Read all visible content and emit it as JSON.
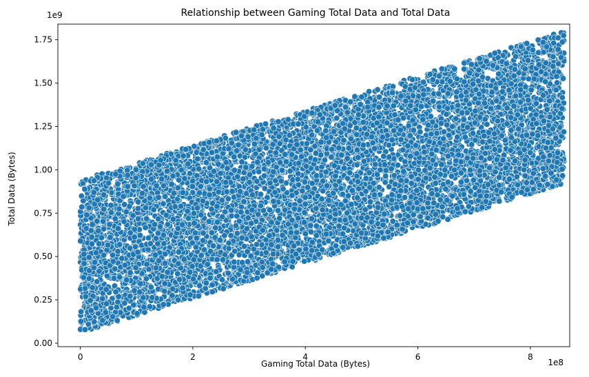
{
  "chart_data": {
    "type": "scatter",
    "title": "Relationship between Gaming Total Data and Total Data",
    "xlabel": "Gaming Total Data (Bytes)",
    "ylabel": "Total Data (Bytes)",
    "x_offset_label": "1e8",
    "y_offset_label": "1e9",
    "xlim": [
      -0.4,
      8.7
    ],
    "ylim": [
      -0.02,
      1.84
    ],
    "x_ticks": [
      0,
      2,
      4,
      6,
      8
    ],
    "x_tick_labels": [
      "0",
      "2",
      "4",
      "6",
      "8"
    ],
    "y_ticks": [
      0.0,
      0.25,
      0.5,
      0.75,
      1.0,
      1.25,
      1.5,
      1.75
    ],
    "y_tick_labels": [
      "0.00",
      "0.25",
      "0.50",
      "0.75",
      "1.00",
      "1.25",
      "1.50",
      "1.75"
    ],
    "grid": false,
    "point_color": "#1f77b4",
    "point_edge_color": "#ffffff",
    "x_range": [
      0.0,
      8.6
    ],
    "band_lower": {
      "at_x0": 0.06,
      "slope": 0.1
    },
    "band_upper": {
      "at_x0": 0.94,
      "slope": 0.1
    },
    "approx_point_count": 14000
  }
}
